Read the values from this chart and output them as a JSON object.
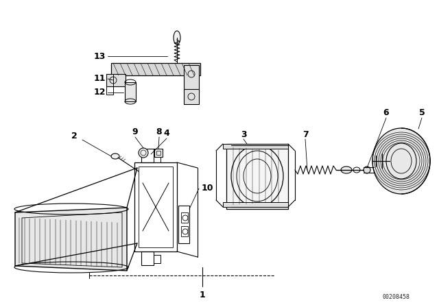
{
  "background_color": "#ffffff",
  "line_color": "#000000",
  "watermark": "00208458",
  "fig_w": 6.4,
  "fig_h": 4.48,
  "dpi": 100
}
